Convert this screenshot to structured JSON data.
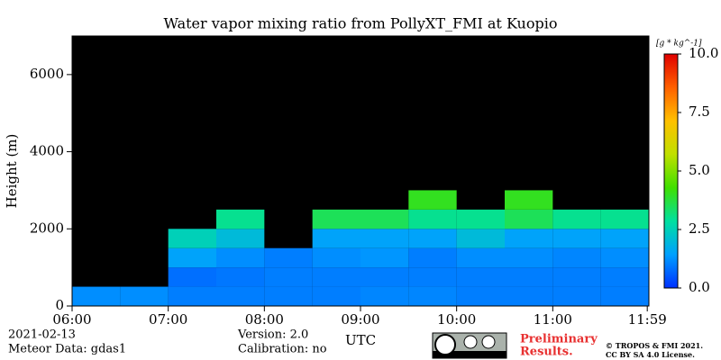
{
  "chart_data": {
    "type": "heatmap",
    "title": "Water vapor mixing ratio from PollyXT_FMI at Kuopio",
    "x_label": "UTC",
    "y_label": "Height (m)",
    "xlim": [
      6,
      12
    ],
    "ylim": [
      0,
      7000
    ],
    "xticks": [
      {
        "value": 6,
        "label": "06:00"
      },
      {
        "value": 7,
        "label": "07:00"
      },
      {
        "value": 8,
        "label": "08:00"
      },
      {
        "value": 9,
        "label": "09:00"
      },
      {
        "value": 10,
        "label": "10:00"
      },
      {
        "value": 11,
        "label": "11:00"
      },
      {
        "value": 11.983,
        "label": "11:59"
      }
    ],
    "yticks": [
      0,
      2000,
      4000,
      6000
    ],
    "x_bins": [
      6,
      6.5,
      7,
      7.5,
      8,
      8.5,
      9,
      9.5,
      10,
      10.5,
      11,
      11.5,
      12
    ],
    "y_bins": [
      0,
      500,
      1000,
      1500,
      2000,
      2500,
      3000
    ],
    "z": [
      [
        1.2,
        1.2,
        1.0,
        1.0,
        1.0,
        1.0,
        1.1,
        1.1,
        1.0,
        1.0,
        1.0,
        1.0
      ],
      [
        null,
        null,
        0.8,
        0.9,
        1.0,
        1.0,
        1.0,
        1.0,
        1.0,
        1.0,
        1.0,
        1.0
      ],
      [
        null,
        null,
        1.5,
        1.2,
        1.0,
        1.2,
        1.3,
        1.0,
        1.2,
        1.2,
        1.1,
        1.2
      ],
      [
        null,
        null,
        2.5,
        2.0,
        null,
        1.5,
        1.5,
        1.5,
        2.0,
        1.5,
        1.5,
        1.5
      ],
      [
        null,
        null,
        null,
        3.0,
        null,
        3.5,
        3.5,
        3.0,
        3.0,
        3.5,
        3.0,
        3.0
      ],
      [
        null,
        null,
        null,
        null,
        null,
        null,
        null,
        4.0,
        null,
        4.0,
        null,
        null
      ]
    ],
    "background": "#000000",
    "colorbar": {
      "label": "[g * kg^-1]",
      "lim": [
        0,
        10
      ],
      "ticks": [
        {
          "value": 0,
          "label": "0.0"
        },
        {
          "value": 2.5,
          "label": "2.5"
        },
        {
          "value": 5,
          "label": "5.0"
        },
        {
          "value": 7.5,
          "label": "7.5"
        },
        {
          "value": 10,
          "label": "10.0"
        }
      ],
      "colors": [
        "#0030ff",
        "#00a0ff",
        "#00e0a0",
        "#40e000",
        "#c0e000",
        "#ffc000",
        "#ff6000",
        "#e00000"
      ]
    },
    "annotations": {
      "date": "2021-02-13",
      "meteor": "Meteor Data: gdas1",
      "version": "Version: 2.0",
      "calibration": "Calibration: no",
      "preliminary": "Preliminary",
      "results": "Results.",
      "copyright": "© TROPOS & FMI 2021.",
      "license": "CC BY SA 4.0 License."
    }
  }
}
